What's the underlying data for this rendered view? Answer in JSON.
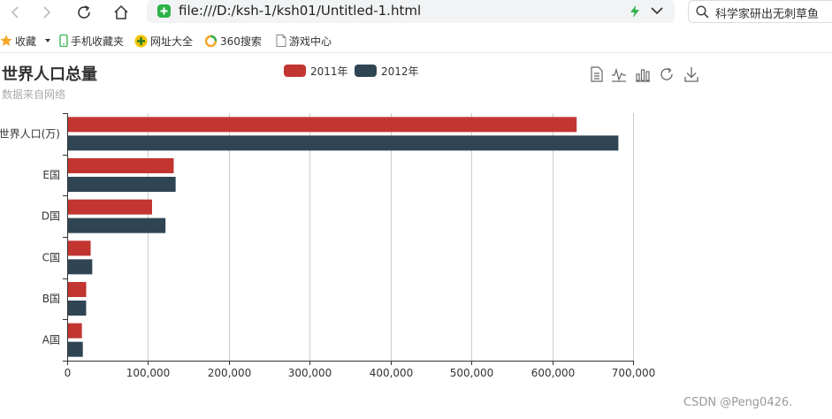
{
  "browser": {
    "url": "file:///D:/ksh-1/ksh01/Untitled-1.html",
    "search_text": "科学家研出无刺草鱼",
    "nav_icons": [
      "back-arrow-icon",
      "forward-arrow-icon",
      "reload-icon",
      "home-icon"
    ]
  },
  "bookmarks": [
    {
      "label": "收藏",
      "icon": "star-icon"
    },
    {
      "label": "手机收藏夹",
      "icon": "phone-icon"
    },
    {
      "label": "网址大全",
      "icon": "globe-icon"
    },
    {
      "label": "360搜索",
      "icon": "search-360-icon"
    },
    {
      "label": "游戏中心",
      "icon": "document-icon"
    }
  ],
  "toolbox": [
    "data-view-icon",
    "line-chart-icon",
    "bar-chart-icon",
    "restore-icon",
    "download-icon"
  ],
  "colors": {
    "series_2011": "#c23531",
    "series_2012": "#2f4554",
    "axis": "#333333",
    "grid": "#cccccc"
  },
  "chart_data": {
    "type": "bar",
    "orientation": "horizontal",
    "title": "世界人口总量",
    "subtitle": "数据来自网络",
    "categories": [
      "A国",
      "B国",
      "C国",
      "D国",
      "E国",
      "世界人口(万)"
    ],
    "series": [
      {
        "name": "2011年",
        "values": [
          18203,
          23489,
          29034,
          104970,
          131744,
          630230
        ]
      },
      {
        "name": "2012年",
        "values": [
          19325,
          23438,
          31000,
          121594,
          134141,
          681807
        ]
      }
    ],
    "xlim": [
      0,
      700000
    ],
    "x_ticks": [
      0,
      100000,
      200000,
      300000,
      400000,
      500000,
      600000,
      700000
    ],
    "x_tick_labels": [
      "0",
      "100,000",
      "200,000",
      "300,000",
      "400,000",
      "500,000",
      "600,000",
      "700,000"
    ],
    "grid": true,
    "legend_position": "top-center"
  },
  "watermark": "CSDN @Peng0426."
}
